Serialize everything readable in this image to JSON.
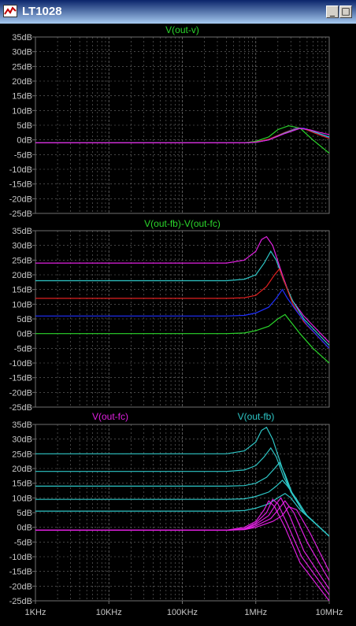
{
  "window": {
    "title": "LT1028",
    "buttons": [
      "_",
      "□",
      "×"
    ]
  },
  "colors": {
    "grid": "#707070",
    "tick_text": "#c8c8c8",
    "green": "#2bd62b",
    "cyan": "#2ec6c6",
    "red": "#e02020",
    "blue": "#2030ff",
    "magenta": "#e020e0"
  },
  "chart_data": [
    {
      "type": "line",
      "title": "V(out-v)",
      "title_color": "green",
      "xscale": "log",
      "xlim": [
        1000,
        10000000
      ],
      "ylim": [
        -25,
        35
      ],
      "yticks": [
        "35dB",
        "30dB",
        "25dB",
        "20dB",
        "15dB",
        "10dB",
        "5dB",
        "0dB",
        "-5dB",
        "-10dB",
        "-15dB",
        "-20dB",
        "-25dB"
      ],
      "series": [
        {
          "color": "green",
          "x": [
            1000,
            700000,
            1000000,
            1500000,
            2000000,
            2800000,
            4000000,
            6000000,
            10000000
          ],
          "y": [
            -1,
            -1,
            -0.5,
            1,
            3.5,
            4.8,
            4,
            0,
            -4.5
          ]
        },
        {
          "color": "blue",
          "x": [
            1000,
            700000,
            1000000,
            1500000,
            2500000,
            3500000,
            4500000,
            6500000,
            10000000
          ],
          "y": [
            -1,
            -1,
            -0.8,
            0,
            2.5,
            4,
            4,
            2.5,
            0.8
          ]
        },
        {
          "color": "red",
          "x": [
            1000,
            700000,
            1000000,
            1500000,
            2500000,
            3700000,
            4500000,
            6500000,
            10000000
          ],
          "y": [
            -1,
            -1,
            -0.7,
            0.2,
            2.6,
            4,
            3.8,
            2.2,
            0.5
          ]
        },
        {
          "color": "cyan",
          "x": [
            1000,
            700000,
            1000000,
            1500000,
            2500000,
            3800000,
            5000000,
            7000000,
            10000000
          ],
          "y": [
            -1,
            -1,
            -0.8,
            0,
            2.4,
            3.9,
            3.6,
            2.3,
            1
          ]
        },
        {
          "color": "magenta",
          "x": [
            1000,
            700000,
            1000000,
            1500000,
            2500000,
            4000000,
            5500000,
            7500000,
            10000000
          ],
          "y": [
            -1,
            -1,
            -0.8,
            0,
            2.2,
            3.9,
            3.4,
            2.5,
            1.8
          ]
        }
      ]
    },
    {
      "type": "line",
      "title": "V(out-fb)-V(out-fc)",
      "title_color": "green",
      "xscale": "log",
      "xlim": [
        1000,
        10000000
      ],
      "ylim": [
        -25,
        35
      ],
      "yticks": [
        "35dB",
        "30dB",
        "25dB",
        "20dB",
        "15dB",
        "10dB",
        "5dB",
        "0dB",
        "-5dB",
        "-10dB",
        "-15dB",
        "-20dB",
        "-25dB"
      ],
      "series": [
        {
          "color": "magenta",
          "x": [
            1000,
            400000,
            700000,
            1000000,
            1200000,
            1400000,
            1700000,
            2300000,
            3000000,
            4500000,
            10000000
          ],
          "y": [
            24,
            24,
            25,
            28,
            32,
            33,
            30,
            20,
            12,
            6,
            -3
          ]
        },
        {
          "color": "cyan",
          "x": [
            1000,
            400000,
            700000,
            1000000,
            1300000,
            1600000,
            1900000,
            2400000,
            3200000,
            4500000,
            10000000
          ],
          "y": [
            18,
            18,
            18.5,
            20,
            24,
            28,
            25,
            18,
            11,
            5,
            -4
          ]
        },
        {
          "color": "red",
          "x": [
            1000,
            400000,
            700000,
            1000000,
            1400000,
            1800000,
            2100000,
            2500000,
            3200000,
            4500000,
            10000000
          ],
          "y": [
            12,
            12,
            12.2,
            13,
            16,
            20,
            22,
            17,
            10,
            4,
            -5
          ]
        },
        {
          "color": "blue",
          "x": [
            1000,
            400000,
            700000,
            1000000,
            1500000,
            1900000,
            2300000,
            2700000,
            3500000,
            5000000,
            10000000
          ],
          "y": [
            6,
            6,
            6.2,
            7,
            9,
            12,
            15,
            12,
            8,
            3,
            -5
          ]
        },
        {
          "color": "green",
          "x": [
            1000,
            400000,
            700000,
            1000000,
            1500000,
            2000000,
            2500000,
            3000000,
            4000000,
            6000000,
            10000000
          ],
          "y": [
            0,
            0,
            0.2,
            1,
            2.5,
            5,
            6.5,
            4,
            0,
            -5,
            -10
          ]
        }
      ]
    },
    {
      "type": "line",
      "xscale": "log",
      "xlim": [
        1000,
        10000000
      ],
      "ylim": [
        -25,
        35
      ],
      "xticks": [
        "1KHz",
        "10KHz",
        "100KHz",
        "1MHz",
        "10MHz"
      ],
      "yticks": [
        "35dB",
        "30dB",
        "25dB",
        "20dB",
        "15dB",
        "10dB",
        "5dB",
        "0dB",
        "-5dB",
        "-10dB",
        "-15dB",
        "-20dB",
        "-25dB"
      ],
      "legend": [
        {
          "name": "V(out-fc)",
          "color": "magenta"
        },
        {
          "name": "V(out-fb)",
          "color": "cyan"
        }
      ],
      "series": [
        {
          "name": "V(out-fb)",
          "color": "cyan",
          "x": [
            1000,
            400000,
            700000,
            1000000,
            1200000,
            1400000,
            1700000,
            2300000,
            3000000,
            4500000,
            10000000
          ],
          "y": [
            25,
            25,
            26,
            29,
            33,
            34,
            30,
            20,
            12,
            5,
            -3
          ]
        },
        {
          "name": "V(out-fb)",
          "color": "cyan",
          "x": [
            1000,
            400000,
            700000,
            1000000,
            1300000,
            1600000,
            1900000,
            2400000,
            3200000,
            4500000,
            10000000
          ],
          "y": [
            19,
            19,
            19.5,
            21,
            24,
            27,
            24,
            17,
            11,
            5,
            -3
          ]
        },
        {
          "name": "V(out-fb)",
          "color": "cyan",
          "x": [
            1000,
            400000,
            700000,
            1000000,
            1400000,
            1800000,
            2100000,
            2500000,
            3200000,
            4500000,
            10000000
          ],
          "y": [
            14,
            14,
            14.2,
            15,
            17,
            20,
            22,
            18,
            11,
            5,
            -3
          ]
        },
        {
          "name": "V(out-fb)",
          "color": "cyan",
          "x": [
            1000,
            400000,
            700000,
            1000000,
            1500000,
            1900000,
            2300000,
            2700000,
            3500000,
            5000000,
            10000000
          ],
          "y": [
            9.5,
            9.5,
            9.7,
            10.5,
            12,
            14,
            16,
            14,
            10,
            4,
            -3
          ]
        },
        {
          "name": "V(out-fb)",
          "color": "cyan",
          "x": [
            1000,
            400000,
            700000,
            1000000,
            1500000,
            2000000,
            2500000,
            3000000,
            4000000,
            6000000,
            10000000
          ],
          "y": [
            5.5,
            5.5,
            5.7,
            6.5,
            8,
            10,
            11.5,
            10,
            6,
            2,
            -3
          ]
        },
        {
          "name": "V(out-fc)",
          "color": "magenta",
          "x": [
            1000,
            400000,
            700000,
            1000000,
            1300000,
            1500000,
            1800000,
            2500000,
            4000000,
            10000000
          ],
          "y": [
            -1,
            -1,
            0,
            2,
            6,
            9,
            7,
            0,
            -12,
            -25
          ]
        },
        {
          "name": "V(out-fc)",
          "color": "magenta",
          "x": [
            1000,
            400000,
            700000,
            1000000,
            1400000,
            1700000,
            2000000,
            2700000,
            4200000,
            10000000
          ],
          "y": [
            -1,
            -1,
            -0.5,
            1.5,
            5,
            9.5,
            8,
            1,
            -10,
            -23
          ]
        },
        {
          "name": "V(out-fc)",
          "color": "magenta",
          "x": [
            1000,
            400000,
            700000,
            1000000,
            1500000,
            1900000,
            2200000,
            3000000,
            4500000,
            10000000
          ],
          "y": [
            -1,
            -1,
            -0.6,
            1,
            4,
            8,
            10,
            3,
            -8,
            -21
          ]
        },
        {
          "name": "V(out-fc)",
          "color": "magenta",
          "x": [
            1000,
            400000,
            700000,
            1000000,
            1600000,
            2100000,
            2500000,
            3300000,
            5000000,
            10000000
          ],
          "y": [
            -1,
            -1,
            -0.7,
            0.5,
            3,
            6.5,
            9,
            5,
            -5,
            -18
          ]
        },
        {
          "name": "V(out-fc)",
          "color": "magenta",
          "x": [
            1000,
            400000,
            700000,
            1000000,
            1700000,
            2300000,
            2800000,
            3600000,
            5500000,
            10000000
          ],
          "y": [
            -1,
            -1,
            -0.8,
            0,
            2,
            4,
            7,
            6,
            -2,
            -15
          ]
        }
      ]
    }
  ]
}
